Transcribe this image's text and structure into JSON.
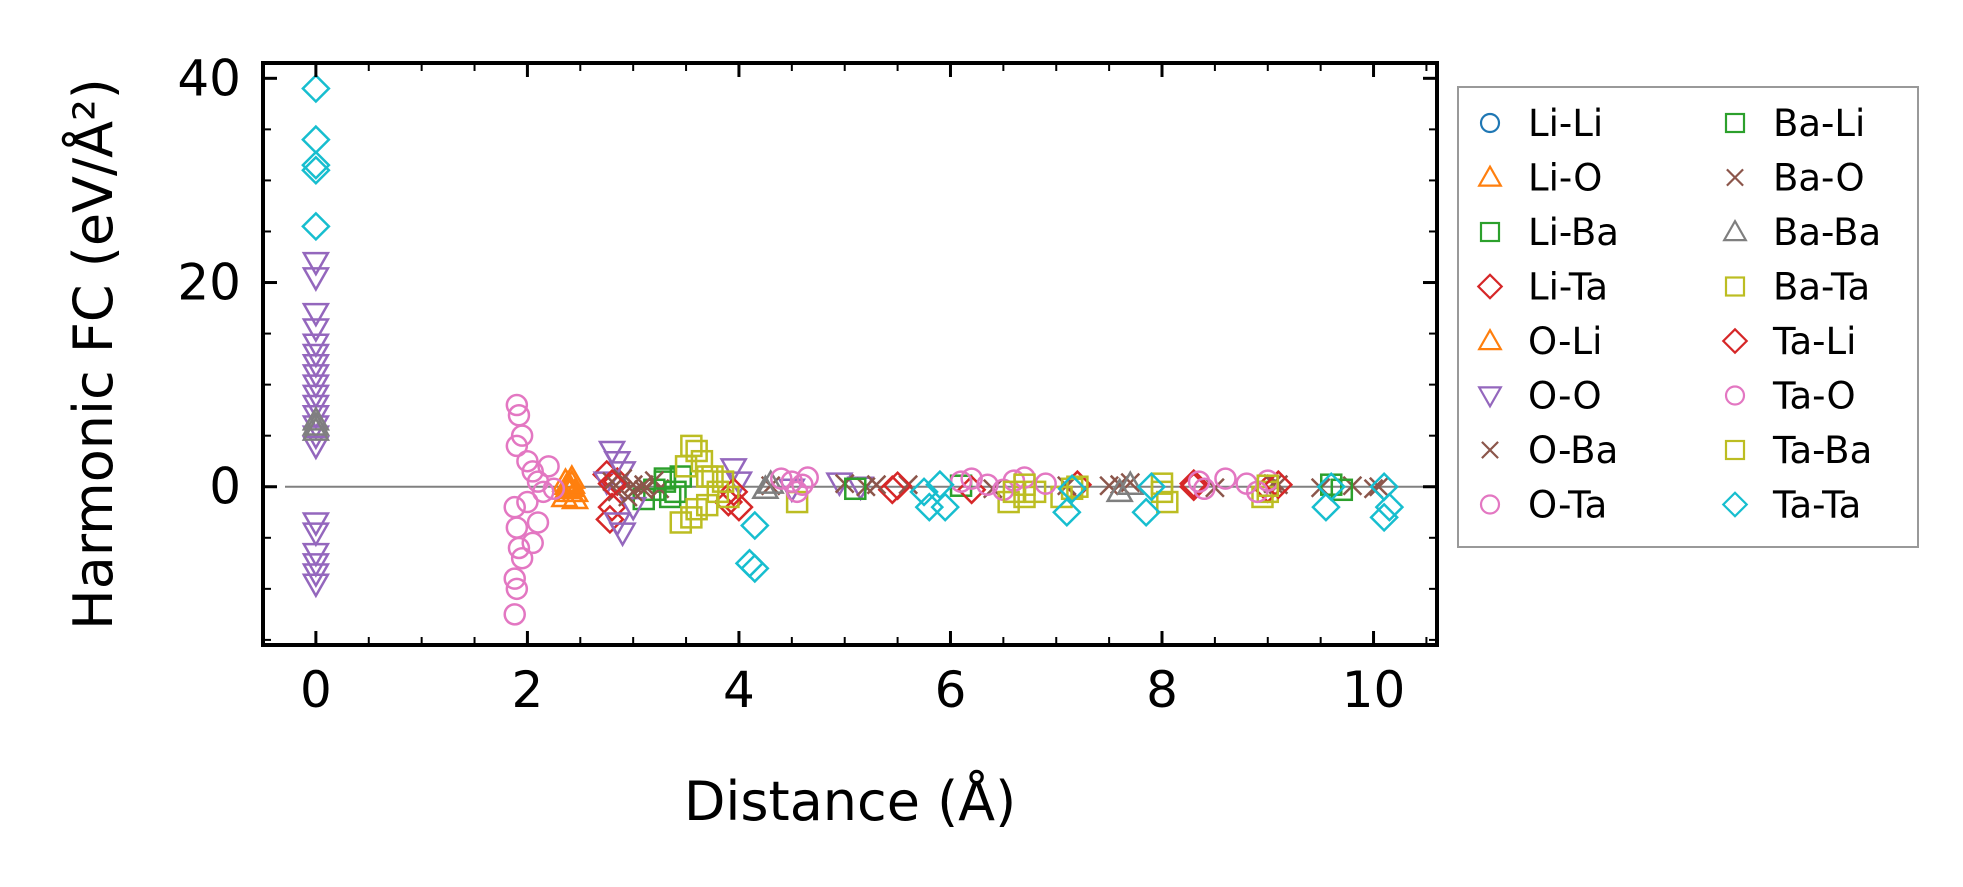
{
  "chart_data": {
    "type": "scatter",
    "title": "",
    "xlabel": "Distance (Å)",
    "ylabel": "Harmonic FC (eV/Å²)",
    "xlim": [
      -0.5,
      10.6
    ],
    "ylim": [
      -15.5,
      41.5
    ],
    "xticks": [
      0,
      2,
      4,
      6,
      8,
      10
    ],
    "xtick_labels": [
      "0",
      "2",
      "4",
      "6",
      "8",
      "10"
    ],
    "yticks": [
      0,
      20,
      40
    ],
    "ytick_labels": [
      "0",
      "20",
      "40"
    ],
    "legend_position": "outside-right",
    "series": [
      {
        "name": "Li-Li",
        "color": "#1f77b4",
        "marker": "circle",
        "points": []
      },
      {
        "name": "Li-O",
        "color": "#ff7f0e",
        "marker": "triangle-up",
        "points": [
          [
            2.35,
            -1.0
          ],
          [
            2.38,
            0.2
          ],
          [
            2.4,
            -0.5
          ],
          [
            2.42,
            0.8
          ],
          [
            2.45,
            -1.2
          ],
          [
            2.36,
            0.5
          ]
        ]
      },
      {
        "name": "Li-Ba",
        "color": "#2ca02c",
        "marker": "square",
        "points": [
          [
            3.1,
            -1.2
          ],
          [
            3.3,
            0.5
          ],
          [
            3.35,
            -1.0
          ],
          [
            3.45,
            1.0
          ],
          [
            3.2,
            -0.3
          ]
        ]
      },
      {
        "name": "Li-Ta",
        "color": "#d62728",
        "marker": "diamond",
        "points": [
          [
            2.75,
            1.2
          ],
          [
            2.78,
            -3.2
          ],
          [
            2.8,
            -2.0
          ],
          [
            2.85,
            0.5
          ],
          [
            3.9,
            -1.5
          ],
          [
            4.0,
            -2.0
          ],
          [
            5.45,
            -0.3
          ],
          [
            7.2,
            0.2
          ],
          [
            8.3,
            0.3
          ],
          [
            9.0,
            -0.2
          ]
        ]
      },
      {
        "name": "O-Li",
        "color": "#ff7f0e",
        "marker": "triangle-up",
        "points": [
          [
            2.4,
            0.0
          ],
          [
            2.45,
            -0.5
          ],
          [
            2.38,
            -0.2
          ],
          [
            2.42,
            0.3
          ]
        ]
      },
      {
        "name": "O-O",
        "color": "#9467bd",
        "marker": "triangle-down",
        "points": [
          [
            0,
            22
          ],
          [
            0,
            20.5
          ],
          [
            0,
            17
          ],
          [
            0,
            15.5
          ],
          [
            0,
            14
          ],
          [
            0,
            13
          ],
          [
            0,
            12
          ],
          [
            0,
            11
          ],
          [
            0,
            10
          ],
          [
            0,
            9
          ],
          [
            0,
            8
          ],
          [
            0,
            7
          ],
          [
            0,
            6
          ],
          [
            0,
            5
          ],
          [
            0,
            4
          ],
          [
            0,
            -3.5
          ],
          [
            0,
            -4.5
          ],
          [
            0,
            -6.5
          ],
          [
            0,
            -7.5
          ],
          [
            0,
            -8.5
          ],
          [
            0,
            -9.5
          ],
          [
            2.8,
            3.5
          ],
          [
            2.85,
            2.5
          ],
          [
            2.9,
            1.5
          ],
          [
            2.75,
            0.5
          ],
          [
            2.85,
            -3.5
          ],
          [
            2.9,
            -4.5
          ],
          [
            3.0,
            -2.0
          ],
          [
            3.95,
            1.8
          ],
          [
            4.0,
            0.5
          ],
          [
            4.5,
            -0.2
          ],
          [
            4.95,
            0.4
          ],
          [
            5.15,
            0.0
          ]
        ]
      },
      {
        "name": "O-Ba",
        "color": "#8c564b",
        "marker": "cross",
        "points": [
          [
            2.8,
            0.5
          ],
          [
            2.85,
            -0.5
          ],
          [
            2.9,
            0.8
          ],
          [
            2.95,
            -1.0
          ],
          [
            3.0,
            0.2
          ],
          [
            3.1,
            -0.3
          ],
          [
            3.2,
            0.6
          ],
          [
            3.25,
            -0.2
          ],
          [
            5.0,
            0.3
          ],
          [
            5.2,
            0.0
          ],
          [
            5.6,
            0.2
          ],
          [
            7.1,
            0.1
          ],
          [
            7.6,
            0.2
          ],
          [
            7.7,
            0.4
          ],
          [
            9.1,
            0.2
          ],
          [
            9.5,
            -0.1
          ],
          [
            9.8,
            0.1
          ],
          [
            10.05,
            0.0
          ]
        ]
      },
      {
        "name": "O-Ta",
        "color": "#e377c2",
        "marker": "circle",
        "points": [
          [
            1.9,
            8
          ],
          [
            1.92,
            7
          ],
          [
            1.95,
            5
          ],
          [
            1.9,
            4
          ],
          [
            1.88,
            -2
          ],
          [
            1.9,
            -4
          ],
          [
            1.92,
            -6
          ],
          [
            1.95,
            -7
          ],
          [
            1.88,
            -9
          ],
          [
            1.9,
            -10
          ],
          [
            1.88,
            -12.5
          ],
          [
            2.0,
            2.5
          ],
          [
            2.05,
            1.5
          ],
          [
            2.1,
            0.5
          ],
          [
            2.15,
            -0.5
          ],
          [
            2.0,
            -1.5
          ],
          [
            2.1,
            -3.5
          ],
          [
            2.05,
            -5.5
          ],
          [
            2.2,
            2.0
          ],
          [
            2.25,
            -0.2
          ]
        ]
      },
      {
        "name": "Ba-Li",
        "color": "#2ca02c",
        "marker": "square",
        "points": [
          [
            3.4,
            -0.5
          ],
          [
            3.3,
            0.8
          ],
          [
            5.1,
            -0.2
          ],
          [
            6.1,
            0.1
          ],
          [
            9.6,
            0.2
          ],
          [
            9.7,
            -0.3
          ]
        ]
      },
      {
        "name": "Ba-O",
        "color": "#8c564b",
        "marker": "cross",
        "points": [
          [
            3.0,
            -0.5
          ],
          [
            3.1,
            0.2
          ],
          [
            4.3,
            0.1
          ],
          [
            5.3,
            0.2
          ],
          [
            6.4,
            -0.2
          ],
          [
            7.5,
            0.1
          ],
          [
            8.5,
            -0.1
          ],
          [
            9.05,
            0.3
          ],
          [
            10.0,
            -0.2
          ]
        ]
      },
      {
        "name": "Ba-Ba",
        "color": "#7f7f7f",
        "marker": "triangle-up",
        "points": [
          [
            0,
            6.5
          ],
          [
            0,
            6.0
          ],
          [
            0,
            5.5
          ],
          [
            4.25,
            -0.2
          ],
          [
            4.3,
            0.3
          ],
          [
            7.6,
            -0.5
          ],
          [
            7.7,
            0.2
          ]
        ]
      },
      {
        "name": "Ba-Ta",
        "color": "#bcbd22",
        "marker": "square",
        "points": [
          [
            3.45,
            -3.5
          ],
          [
            3.55,
            -3.0
          ],
          [
            3.6,
            -2.2
          ],
          [
            3.7,
            -1.8
          ],
          [
            3.75,
            1.0
          ],
          [
            3.5,
            2.0
          ],
          [
            3.9,
            -1.0
          ],
          [
            4.55,
            -1.5
          ],
          [
            6.55,
            -1.5
          ],
          [
            6.7,
            -1.0
          ],
          [
            6.8,
            -0.5
          ],
          [
            7.05,
            -1.0
          ],
          [
            7.2,
            0.0
          ],
          [
            8.0,
            -0.5
          ],
          [
            8.05,
            -1.5
          ],
          [
            8.95,
            -1.0
          ],
          [
            9.0,
            -0.5
          ]
        ]
      },
      {
        "name": "Ta-Li",
        "color": "#d62728",
        "marker": "diamond",
        "points": [
          [
            2.8,
            0.3
          ],
          [
            3.95,
            -0.5
          ],
          [
            5.5,
            0.1
          ],
          [
            6.2,
            -0.3
          ],
          [
            8.3,
            0.0
          ],
          [
            9.1,
            0.2
          ]
        ]
      },
      {
        "name": "Ta-O",
        "color": "#e377c2",
        "marker": "circle",
        "points": [
          [
            4.4,
            0.8
          ],
          [
            4.5,
            0.5
          ],
          [
            4.6,
            0.2
          ],
          [
            4.55,
            -0.5
          ],
          [
            4.65,
            0.9
          ],
          [
            6.1,
            0.5
          ],
          [
            6.2,
            0.8
          ],
          [
            6.35,
            0.2
          ],
          [
            6.5,
            -0.3
          ],
          [
            6.6,
            0.6
          ],
          [
            6.7,
            0.9
          ],
          [
            6.9,
            0.3
          ],
          [
            8.35,
            0.5
          ],
          [
            8.4,
            -0.2
          ],
          [
            8.6,
            0.8
          ],
          [
            8.8,
            0.3
          ],
          [
            8.9,
            -0.5
          ],
          [
            9.0,
            0.6
          ]
        ]
      },
      {
        "name": "Ta-Ba",
        "color": "#bcbd22",
        "marker": "square",
        "points": [
          [
            3.55,
            4.0
          ],
          [
            3.6,
            3.5
          ],
          [
            3.65,
            2.5
          ],
          [
            3.7,
            1.0
          ],
          [
            3.8,
            -0.5
          ],
          [
            3.85,
            0.5
          ],
          [
            6.6,
            -0.5
          ],
          [
            6.7,
            0.2
          ],
          [
            7.15,
            -0.2
          ],
          [
            8.0,
            0.3
          ],
          [
            9.0,
            0.1
          ]
        ]
      },
      {
        "name": "Ta-Ta",
        "color": "#17becf",
        "marker": "diamond",
        "points": [
          [
            0,
            39
          ],
          [
            0,
            34
          ],
          [
            0,
            31.5
          ],
          [
            0,
            31
          ],
          [
            0,
            25.5
          ],
          [
            4.1,
            -7.5
          ],
          [
            4.15,
            -8.0
          ],
          [
            4.15,
            -3.8
          ],
          [
            5.8,
            -2.0
          ],
          [
            5.9,
            0.2
          ],
          [
            5.95,
            -2.0
          ],
          [
            5.75,
            -0.5
          ],
          [
            7.1,
            -2.5
          ],
          [
            7.15,
            -0.2
          ],
          [
            7.85,
            -2.5
          ],
          [
            7.9,
            0.0
          ],
          [
            9.55,
            -2.0
          ],
          [
            9.6,
            0.0
          ],
          [
            10.1,
            -3.0
          ],
          [
            10.15,
            -2.0
          ],
          [
            10.1,
            0.0
          ]
        ]
      }
    ]
  }
}
